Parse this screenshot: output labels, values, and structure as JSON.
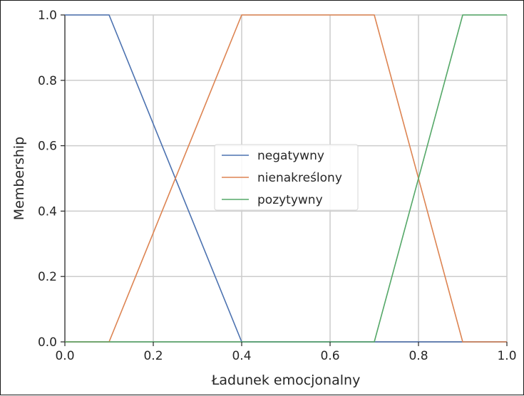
{
  "chart_data": {
    "type": "line",
    "xlabel": "Ładunek emocjonalny",
    "ylabel": "Membership",
    "xlim": [
      0.0,
      1.0
    ],
    "ylim": [
      0.0,
      1.0
    ],
    "xticks": [
      "0.0",
      "0.2",
      "0.4",
      "0.6",
      "0.8",
      "1.0"
    ],
    "yticks": [
      "0.0",
      "0.2",
      "0.4",
      "0.6",
      "0.8",
      "1.0"
    ],
    "grid": true,
    "legend_position": "center",
    "series": [
      {
        "name": "negatywny",
        "color": "#4c72b0",
        "x": [
          0.0,
          0.1,
          0.4,
          1.0
        ],
        "y": [
          1.0,
          1.0,
          0.0,
          0.0
        ]
      },
      {
        "name": "nienakreślony",
        "color": "#dd8452",
        "x": [
          0.0,
          0.1,
          0.4,
          0.7,
          0.9,
          1.0
        ],
        "y": [
          0.0,
          0.0,
          1.0,
          1.0,
          0.0,
          0.0
        ]
      },
      {
        "name": "pozytywny",
        "color": "#55a868",
        "x": [
          0.0,
          0.7,
          0.9,
          1.0
        ],
        "y": [
          0.0,
          0.0,
          1.0,
          1.0
        ]
      }
    ]
  }
}
